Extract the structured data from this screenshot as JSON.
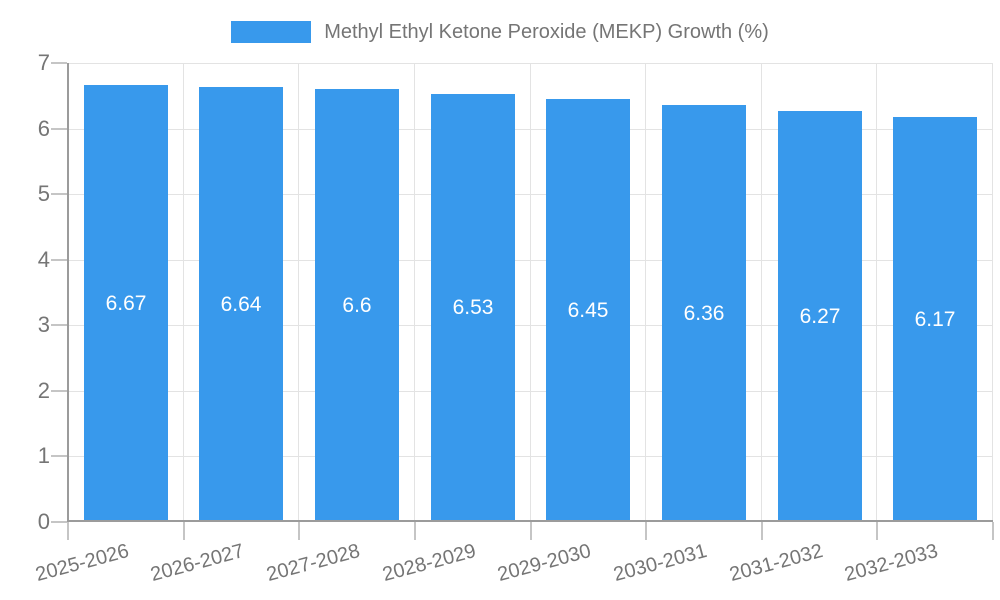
{
  "chart_data": {
    "type": "bar",
    "title": "",
    "xlabel": "",
    "ylabel": "",
    "legend_position": "top",
    "grid": true,
    "categories": [
      "2025-2026",
      "2026-2027",
      "2027-2028",
      "2028-2029",
      "2029-2030",
      "2030-2031",
      "2031-2032",
      "2032-2033"
    ],
    "series": [
      {
        "name": "Methyl Ethyl Ketone Peroxide (MEKP) Growth (%)",
        "values": [
          6.67,
          6.64,
          6.6,
          6.53,
          6.45,
          6.36,
          6.27,
          6.17
        ]
      }
    ],
    "value_labels": [
      "6.67",
      "6.64",
      "6.6",
      "6.53",
      "6.45",
      "6.36",
      "6.27",
      "6.17"
    ],
    "ylim": [
      0,
      7
    ],
    "yticks": [
      "0",
      "1",
      "2",
      "3",
      "4",
      "5",
      "6",
      "7"
    ],
    "colors": {
      "bar": "#3899ec",
      "value_label": "#ffffff",
      "gridline": "#e3e3e3",
      "tick": "#c5c5c5",
      "axis": "#9b9b9b",
      "text": "#757575"
    }
  }
}
